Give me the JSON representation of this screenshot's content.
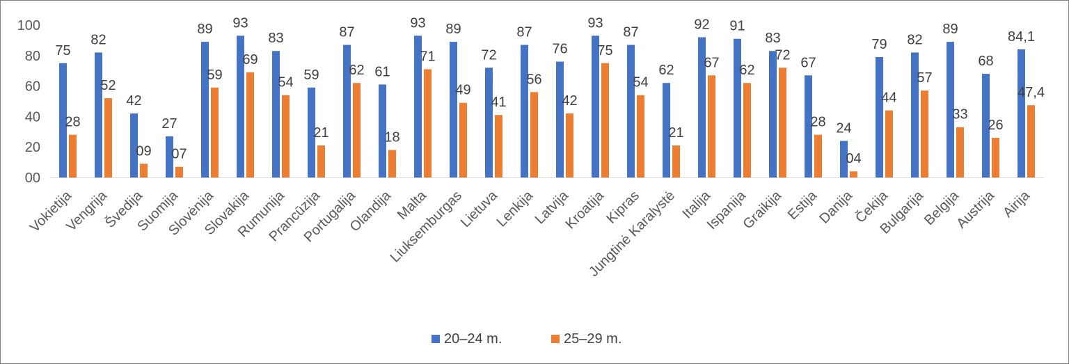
{
  "chart_data": {
    "type": "bar",
    "categories": [
      "Vokietija",
      "Vengrija",
      "Švedija",
      "Suomija",
      "Slovėnija",
      "Slovakija",
      "Rumunija",
      "Prancūzija",
      "Portugalija",
      "Olandija",
      "Malta",
      "Liuksemburgas",
      "Lietuva",
      "Lenkija",
      "Latvija",
      "Kroatija",
      "Kipras",
      "Jungtinė Karalystė",
      "Italija",
      "Ispanija",
      "Graikija",
      "Estija",
      "Danija",
      "Čekija",
      "Bulgarija",
      "Belgija",
      "Austrija",
      "Airija"
    ],
    "series": [
      {
        "name": "20–24 m.",
        "color": "#4472C4",
        "values": [
          75,
          82,
          42,
          27,
          89,
          93,
          83,
          59,
          87,
          61,
          93,
          89,
          72,
          87,
          76,
          93,
          87,
          62,
          92,
          91,
          83,
          67,
          24,
          79,
          82,
          89,
          68,
          84.1
        ],
        "labels": [
          "75",
          "82",
          "42",
          "27",
          "89",
          "93",
          "83",
          "59",
          "87",
          "61",
          "93",
          "89",
          "72",
          "87",
          "76",
          "93",
          "87",
          "62",
          "92",
          "91",
          "83",
          "67",
          "24",
          "79",
          "82",
          "89",
          "68",
          "84,1"
        ]
      },
      {
        "name": "25–29 m.",
        "color": "#ED7D31",
        "values": [
          28,
          52,
          9,
          7,
          59,
          69,
          54,
          21,
          62,
          18,
          71,
          49,
          41,
          56,
          42,
          75,
          54,
          21,
          67,
          62,
          72,
          28,
          4,
          44,
          57,
          33,
          26,
          47.4
        ],
        "labels": [
          "28",
          "52",
          "09",
          "07",
          "59",
          "69",
          "54",
          "21",
          "62",
          "18",
          "71",
          "49",
          "41",
          "56",
          "42",
          "75",
          "54",
          "21",
          "67",
          "62",
          "72",
          "28",
          "04",
          "44",
          "57",
          "33",
          "26",
          "47,4"
        ]
      }
    ],
    "ylim": [
      0,
      100
    ],
    "yticks": [
      "00",
      "20",
      "40",
      "60",
      "80",
      "100"
    ],
    "grid": false,
    "legend_position": "bottom",
    "xlabel": "",
    "ylabel": "",
    "title": ""
  }
}
